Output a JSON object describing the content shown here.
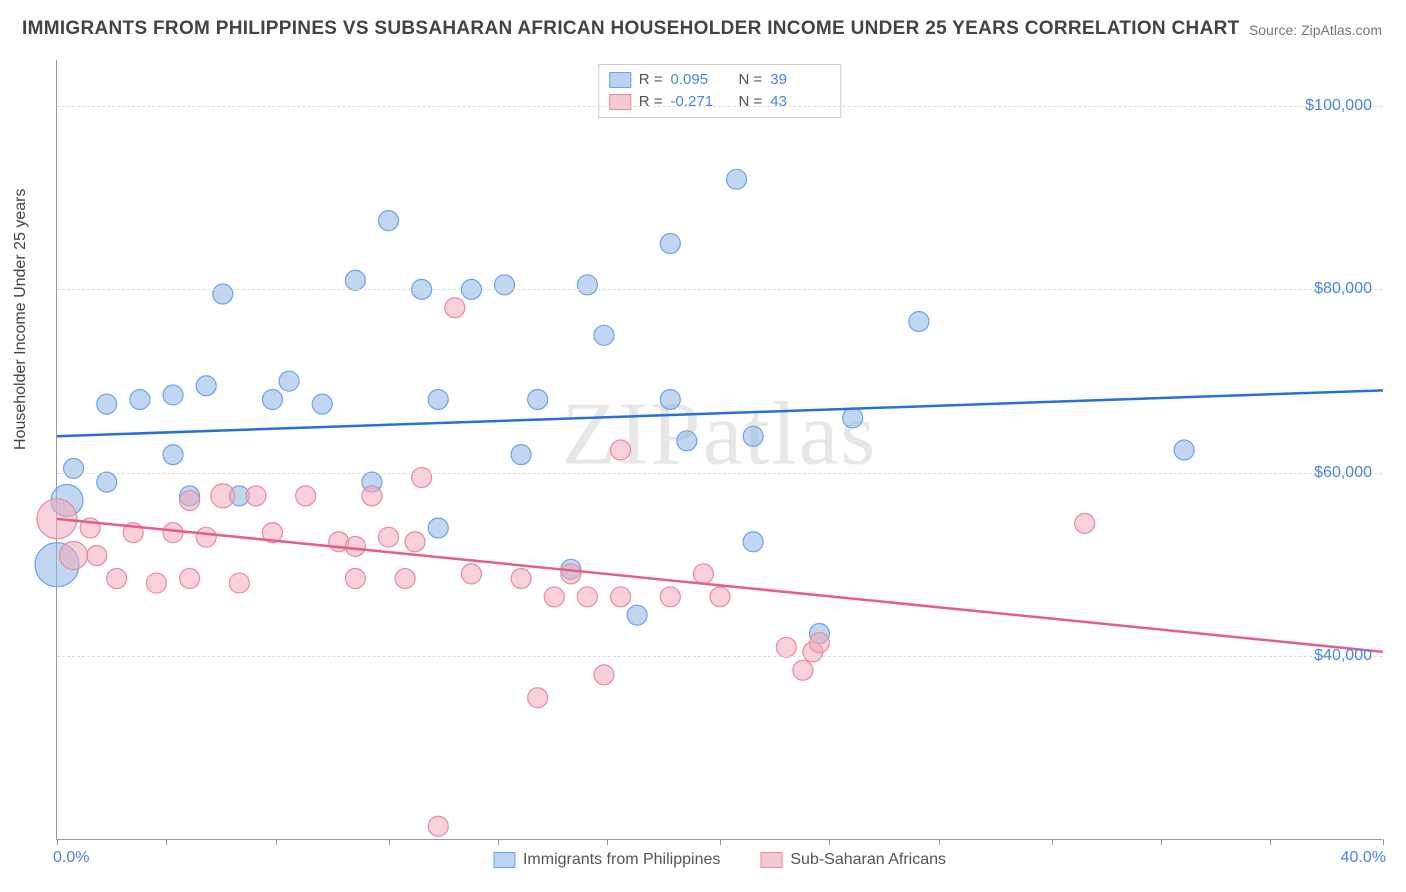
{
  "title": "IMMIGRANTS FROM PHILIPPINES VS SUBSAHARAN AFRICAN HOUSEHOLDER INCOME UNDER 25 YEARS CORRELATION CHART",
  "source": "Source: ZipAtlas.com",
  "watermark": "ZIPatlas",
  "y_axis": {
    "label": "Householder Income Under 25 years",
    "min": 20000,
    "max": 105000,
    "ticks": [
      40000,
      60000,
      80000,
      100000
    ],
    "tick_labels": [
      "$40,000",
      "$60,000",
      "$80,000",
      "$100,000"
    ],
    "label_color": "#444",
    "tick_color": "#4a85e0",
    "fontsize": 16
  },
  "x_axis": {
    "min": 0,
    "max": 40,
    "tick_positions": [
      0,
      3.3,
      6.6,
      10,
      13.3,
      16.6,
      20,
      23.3,
      26.6,
      30,
      33.3,
      36.6,
      40
    ],
    "range_min_label": "0.0%",
    "range_max_label": "40.0%",
    "label_color": "#4a85e0",
    "fontsize": 16
  },
  "grid": {
    "color": "#dddddd",
    "style": "dashed"
  },
  "background_color": "#ffffff",
  "legend_top": {
    "rows": [
      {
        "swatch_fill": "#b9d3f1",
        "swatch_border": "#6ea3e6",
        "r_label": "R =",
        "r_value": "0.095",
        "n_label": "N =",
        "n_value": "39"
      },
      {
        "swatch_fill": "#f6c8d2",
        "swatch_border": "#e98ba2",
        "r_label": "R =",
        "r_value": "-0.271",
        "n_label": "N =",
        "n_value": "43"
      }
    ]
  },
  "legend_bottom": {
    "items": [
      {
        "swatch_fill": "#b9d3f1",
        "swatch_border": "#6ea3e6",
        "label": "Immigrants from Philippines"
      },
      {
        "swatch_fill": "#f6c8d2",
        "swatch_border": "#e98ba2",
        "label": "Sub-Saharan Africans"
      }
    ]
  },
  "series": [
    {
      "name": "Immigrants from Philippines",
      "marker_fill": "rgba(140,180,230,0.55)",
      "marker_stroke": "#6ea3e6",
      "marker_stroke_width": 1.2,
      "default_radius": 10,
      "trendline": {
        "color": "#2a6fd6",
        "width": 2.5,
        "y_at_xmin": 64000,
        "y_at_xmax": 69000
      },
      "points": [
        {
          "x": 0.0,
          "y": 50000,
          "r": 22
        },
        {
          "x": 0.3,
          "y": 57000,
          "r": 16
        },
        {
          "x": 0.5,
          "y": 60500
        },
        {
          "x": 1.5,
          "y": 59000
        },
        {
          "x": 1.5,
          "y": 67500
        },
        {
          "x": 2.5,
          "y": 68000
        },
        {
          "x": 3.5,
          "y": 68500
        },
        {
          "x": 3.5,
          "y": 62000
        },
        {
          "x": 4.0,
          "y": 57500
        },
        {
          "x": 4.5,
          "y": 69500
        },
        {
          "x": 5.0,
          "y": 79500
        },
        {
          "x": 5.5,
          "y": 57500
        },
        {
          "x": 6.5,
          "y": 68000
        },
        {
          "x": 7.0,
          "y": 70000
        },
        {
          "x": 8.0,
          "y": 67500
        },
        {
          "x": 9.0,
          "y": 81000
        },
        {
          "x": 9.5,
          "y": 59000
        },
        {
          "x": 10.0,
          "y": 87500
        },
        {
          "x": 11.0,
          "y": 80000
        },
        {
          "x": 11.5,
          "y": 54000
        },
        {
          "x": 11.5,
          "y": 68000
        },
        {
          "x": 12.5,
          "y": 80000
        },
        {
          "x": 13.5,
          "y": 80500
        },
        {
          "x": 14.0,
          "y": 62000
        },
        {
          "x": 14.5,
          "y": 68000
        },
        {
          "x": 15.5,
          "y": 49500
        },
        {
          "x": 16.0,
          "y": 80500
        },
        {
          "x": 16.5,
          "y": 75000
        },
        {
          "x": 17.5,
          "y": 44500
        },
        {
          "x": 18.5,
          "y": 85000
        },
        {
          "x": 18.5,
          "y": 68000
        },
        {
          "x": 19.0,
          "y": 63500
        },
        {
          "x": 20.5,
          "y": 92000
        },
        {
          "x": 21.0,
          "y": 64000
        },
        {
          "x": 21.0,
          "y": 52500
        },
        {
          "x": 23.0,
          "y": 42500
        },
        {
          "x": 24.0,
          "y": 66000
        },
        {
          "x": 26.0,
          "y": 76500
        },
        {
          "x": 34.0,
          "y": 62500
        }
      ]
    },
    {
      "name": "Sub-Saharan Africans",
      "marker_fill": "rgba(240,170,185,0.55)",
      "marker_stroke": "#e98ba2",
      "marker_stroke_width": 1.2,
      "default_radius": 10,
      "trendline": {
        "color": "#e55f85",
        "width": 2.5,
        "y_at_xmin": 55000,
        "y_at_xmax": 40500
      },
      "points": [
        {
          "x": 0.0,
          "y": 55000,
          "r": 20
        },
        {
          "x": 0.5,
          "y": 51000,
          "r": 14
        },
        {
          "x": 1.0,
          "y": 54000
        },
        {
          "x": 1.2,
          "y": 51000
        },
        {
          "x": 1.8,
          "y": 48500
        },
        {
          "x": 2.3,
          "y": 53500
        },
        {
          "x": 3.0,
          "y": 48000
        },
        {
          "x": 3.5,
          "y": 53500
        },
        {
          "x": 4.0,
          "y": 57000
        },
        {
          "x": 4.0,
          "y": 48500
        },
        {
          "x": 4.5,
          "y": 53000
        },
        {
          "x": 5.0,
          "y": 57500,
          "r": 12
        },
        {
          "x": 5.5,
          "y": 48000
        },
        {
          "x": 6.0,
          "y": 57500
        },
        {
          "x": 6.5,
          "y": 53500
        },
        {
          "x": 7.5,
          "y": 57500
        },
        {
          "x": 8.5,
          "y": 52500
        },
        {
          "x": 9.0,
          "y": 48500
        },
        {
          "x": 9.0,
          "y": 52000
        },
        {
          "x": 9.5,
          "y": 57500
        },
        {
          "x": 10.0,
          "y": 53000
        },
        {
          "x": 10.5,
          "y": 48500
        },
        {
          "x": 10.8,
          "y": 52500
        },
        {
          "x": 11.0,
          "y": 59500
        },
        {
          "x": 11.5,
          "y": 21500
        },
        {
          "x": 12.0,
          "y": 78000
        },
        {
          "x": 12.5,
          "y": 49000
        },
        {
          "x": 14.0,
          "y": 48500
        },
        {
          "x": 14.5,
          "y": 35500
        },
        {
          "x": 15.0,
          "y": 46500
        },
        {
          "x": 15.5,
          "y": 49000
        },
        {
          "x": 16.0,
          "y": 46500
        },
        {
          "x": 16.5,
          "y": 38000
        },
        {
          "x": 17.0,
          "y": 46500
        },
        {
          "x": 17.0,
          "y": 62500
        },
        {
          "x": 18.5,
          "y": 46500
        },
        {
          "x": 19.5,
          "y": 49000
        },
        {
          "x": 20.0,
          "y": 46500
        },
        {
          "x": 22.0,
          "y": 41000
        },
        {
          "x": 22.5,
          "y": 38500
        },
        {
          "x": 22.8,
          "y": 40500
        },
        {
          "x": 23.0,
          "y": 41500
        },
        {
          "x": 31.0,
          "y": 54500
        }
      ]
    }
  ]
}
